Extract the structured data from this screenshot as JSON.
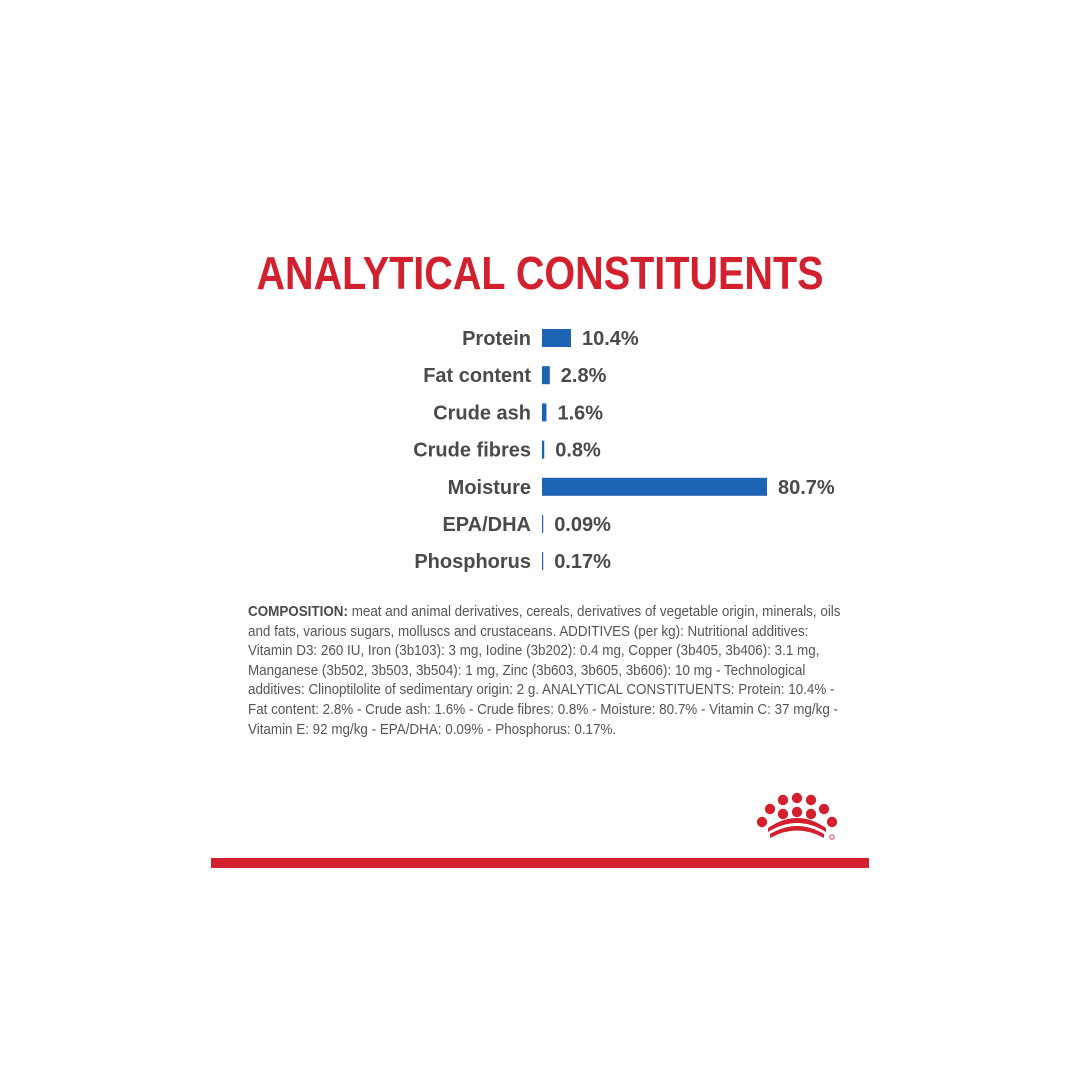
{
  "colors": {
    "title": "#d2202e",
    "bar": "#1e64b4",
    "label": "#4a4a4a",
    "accent_line": "#d2202e",
    "logo": "#d2202e"
  },
  "chart_data": {
    "type": "bar",
    "orientation": "horizontal",
    "title": "ANALYTICAL CONSTITUENTS",
    "categories": [
      "Protein",
      "Fat content",
      "Crude ash",
      "Crude fibres",
      "Moisture",
      "EPA/DHA",
      "Phosphorus"
    ],
    "values": [
      10.4,
      2.8,
      1.6,
      0.8,
      80.7,
      0.09,
      0.17
    ],
    "value_labels": [
      "10.4%",
      "2.8%",
      "1.6%",
      "0.8%",
      "80.7%",
      "0.09%",
      "0.17%"
    ],
    "unit": "%",
    "grid": false,
    "legend": "none"
  },
  "composition": {
    "label": "COMPOSITION:",
    "text": " meat and animal derivatives, cereals, derivatives of vegetable origin, minerals, oils and fats, various sugars, molluscs and crustaceans. ADDITIVES (per kg): Nutritional additives: Vitamin D3: 260 IU, Iron (3b103): 3 mg, Iodine (3b202): 0.4 mg, Copper (3b405, 3b406): 3.1 mg, Manganese (3b502, 3b503, 3b504): 1 mg, Zinc (3b603, 3b605, 3b606): 10 mg - Technological additives: Clinoptilolite of sedimentary origin: 2 g. ANALYTICAL CONSTITUENTS: Protein: 10.4% - Fat content: 2.8% - Crude ash: 1.6% - Crude fibres: 0.8% - Moisture: 80.7% - Vitamin C: 37 mg/kg - Vitamin E: 92 mg/kg - EPA/DHA: 0.09% - Phosphorus: 0.17%."
  },
  "logo": {
    "icon": "crown-icon"
  }
}
